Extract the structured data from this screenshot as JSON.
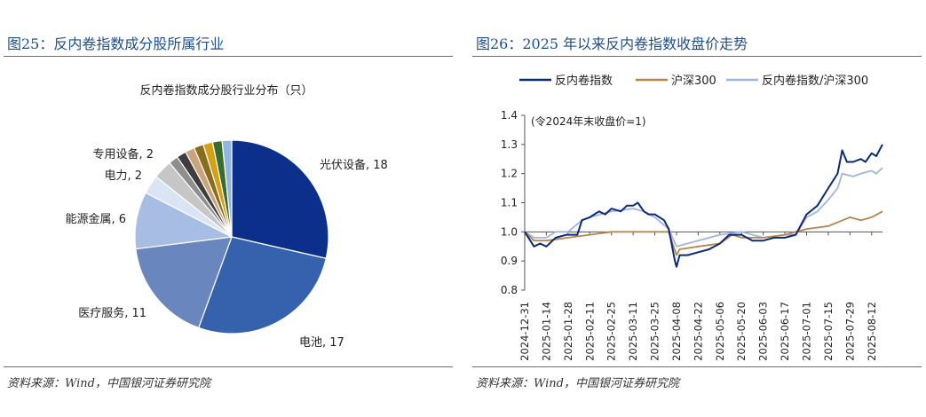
{
  "left": {
    "title": "图25：反内卷指数成分股所属行业",
    "source": "资料来源：Wind，中国银河证券研究院"
  },
  "right": {
    "title": "图26：2025 年以来反内卷指数收盘价走势",
    "source": "资料来源：Wind，中国银河证券研究院"
  },
  "chart_data": [
    {
      "type": "pie",
      "title": "反内卷指数成分股行业分布（只）",
      "slices": [
        {
          "label": "光伏设备",
          "value": 18,
          "color": "#0b2f8a",
          "text": "光伏设备, 18"
        },
        {
          "label": "电池",
          "value": 17,
          "color": "#3561ad",
          "text": "电池, 17"
        },
        {
          "label": "医疗服务",
          "value": 11,
          "color": "#6a86be",
          "text": "医疗服务, 11"
        },
        {
          "label": "能源金属",
          "value": 6,
          "color": "#a8bde3",
          "text": "能源金属, 6"
        },
        {
          "label": "电力",
          "value": 2,
          "color": "#dbe4f3",
          "text": "电力, 2"
        },
        {
          "label": "专用设备",
          "value": 2,
          "color": "#c6c6c6",
          "text": "专用设备, 2"
        },
        {
          "label": "",
          "value": 1,
          "color": "#8e8e8e",
          "text": ""
        },
        {
          "label": "",
          "value": 1,
          "color": "#3e3e3e",
          "text": ""
        },
        {
          "label": "",
          "value": 1,
          "color": "#caa57a",
          "text": ""
        },
        {
          "label": "",
          "value": 1,
          "color": "#8a6d1c",
          "text": ""
        },
        {
          "label": "",
          "value": 1,
          "color": "#d4a017",
          "text": ""
        },
        {
          "label": "",
          "value": 1,
          "color": "#3c6b2e",
          "text": ""
        },
        {
          "label": "",
          "value": 1,
          "color": "#8fb6df",
          "text": ""
        }
      ]
    },
    {
      "type": "line",
      "annotation": "(令2024年末收盘价=1)",
      "ylim": [
        0.8,
        1.4
      ],
      "yticks": [
        "1.4",
        "1.3",
        "1.2",
        "1.1",
        "1.0",
        "0.9",
        "0.8"
      ],
      "xlim": [
        "2024-12-31",
        "2025-08-19"
      ],
      "x_tick_labels": [
        "2024-12-31",
        "2025-01-14",
        "2025-01-28",
        "2025-02-11",
        "2025-02-25",
        "2025-03-11",
        "2025-03-25",
        "2025-04-08",
        "2025-04-22",
        "2025-05-06",
        "2025-05-20",
        "2025-06-03",
        "2025-06-17",
        "2025-07-01",
        "2025-07-15",
        "2025-07-29",
        "2025-08-12"
      ],
      "series": [
        {
          "name": "反内卷指数",
          "color": "#0b2a7a",
          "points": [
            [
              "2024-12-31",
              1.0
            ],
            [
              "2025-01-06",
              0.95
            ],
            [
              "2025-01-10",
              0.96
            ],
            [
              "2025-01-14",
              0.95
            ],
            [
              "2025-01-20",
              0.98
            ],
            [
              "2025-01-27",
              0.99
            ],
            [
              "2025-02-03",
              0.99
            ],
            [
              "2025-02-06",
              1.04
            ],
            [
              "2025-02-11",
              1.05
            ],
            [
              "2025-02-17",
              1.07
            ],
            [
              "2025-02-21",
              1.06
            ],
            [
              "2025-02-25",
              1.08
            ],
            [
              "2025-03-03",
              1.07
            ],
            [
              "2025-03-07",
              1.09
            ],
            [
              "2025-03-11",
              1.09
            ],
            [
              "2025-03-14",
              1.1
            ],
            [
              "2025-03-18",
              1.07
            ],
            [
              "2025-03-21",
              1.06
            ],
            [
              "2025-03-25",
              1.06
            ],
            [
              "2025-03-31",
              1.04
            ],
            [
              "2025-04-03",
              1.01
            ],
            [
              "2025-04-07",
              0.9
            ],
            [
              "2025-04-08",
              0.88
            ],
            [
              "2025-04-10",
              0.92
            ],
            [
              "2025-04-15",
              0.92
            ],
            [
              "2025-04-22",
              0.93
            ],
            [
              "2025-04-29",
              0.94
            ],
            [
              "2025-05-06",
              0.96
            ],
            [
              "2025-05-12",
              0.99
            ],
            [
              "2025-05-20",
              0.99
            ],
            [
              "2025-05-27",
              0.97
            ],
            [
              "2025-06-03",
              0.97
            ],
            [
              "2025-06-10",
              0.98
            ],
            [
              "2025-06-17",
              0.98
            ],
            [
              "2025-06-24",
              0.99
            ],
            [
              "2025-07-01",
              1.06
            ],
            [
              "2025-07-08",
              1.09
            ],
            [
              "2025-07-15",
              1.15
            ],
            [
              "2025-07-21",
              1.2
            ],
            [
              "2025-07-24",
              1.28
            ],
            [
              "2025-07-27",
              1.24
            ],
            [
              "2025-07-31",
              1.24
            ],
            [
              "2025-08-05",
              1.25
            ],
            [
              "2025-08-08",
              1.24
            ],
            [
              "2025-08-12",
              1.27
            ],
            [
              "2025-08-15",
              1.26
            ],
            [
              "2025-08-19",
              1.3
            ]
          ]
        },
        {
          "name": "沪深300",
          "color": "#b8864b",
          "points": [
            [
              "2024-12-31",
              1.0
            ],
            [
              "2025-01-06",
              0.97
            ],
            [
              "2025-01-14",
              0.97
            ],
            [
              "2025-01-28",
              0.98
            ],
            [
              "2025-02-11",
              0.99
            ],
            [
              "2025-02-25",
              1.0
            ],
            [
              "2025-03-11",
              1.0
            ],
            [
              "2025-03-25",
              1.0
            ],
            [
              "2025-04-03",
              1.0
            ],
            [
              "2025-04-08",
              0.92
            ],
            [
              "2025-04-10",
              0.94
            ],
            [
              "2025-04-22",
              0.95
            ],
            [
              "2025-05-06",
              0.96
            ],
            [
              "2025-05-14",
              0.99
            ],
            [
              "2025-05-20",
              0.98
            ],
            [
              "2025-06-03",
              0.98
            ],
            [
              "2025-06-17",
              0.99
            ],
            [
              "2025-06-24",
              1.0
            ],
            [
              "2025-07-01",
              1.01
            ],
            [
              "2025-07-15",
              1.02
            ],
            [
              "2025-07-29",
              1.05
            ],
            [
              "2025-08-05",
              1.04
            ],
            [
              "2025-08-12",
              1.05
            ],
            [
              "2025-08-19",
              1.07
            ]
          ]
        },
        {
          "name": "反内卷指数/沪深300",
          "color": "#9fb6df",
          "points": [
            [
              "2024-12-31",
              1.0
            ],
            [
              "2025-01-06",
              0.98
            ],
            [
              "2025-01-14",
              0.98
            ],
            [
              "2025-01-20",
              1.0
            ],
            [
              "2025-01-28",
              1.0
            ],
            [
              "2025-02-06",
              1.04
            ],
            [
              "2025-02-11",
              1.05
            ],
            [
              "2025-02-25",
              1.07
            ],
            [
              "2025-03-11",
              1.08
            ],
            [
              "2025-03-18",
              1.07
            ],
            [
              "2025-03-25",
              1.05
            ],
            [
              "2025-04-03",
              1.01
            ],
            [
              "2025-04-08",
              0.95
            ],
            [
              "2025-04-15",
              0.96
            ],
            [
              "2025-04-22",
              0.97
            ],
            [
              "2025-05-06",
              0.99
            ],
            [
              "2025-05-20",
              1.0
            ],
            [
              "2025-06-03",
              0.98
            ],
            [
              "2025-06-17",
              0.99
            ],
            [
              "2025-06-24",
              0.99
            ],
            [
              "2025-07-01",
              1.05
            ],
            [
              "2025-07-08",
              1.07
            ],
            [
              "2025-07-15",
              1.11
            ],
            [
              "2025-07-21",
              1.15
            ],
            [
              "2025-07-24",
              1.2
            ],
            [
              "2025-07-31",
              1.19
            ],
            [
              "2025-08-05",
              1.2
            ],
            [
              "2025-08-12",
              1.21
            ],
            [
              "2025-08-15",
              1.2
            ],
            [
              "2025-08-19",
              1.22
            ]
          ]
        }
      ]
    }
  ]
}
